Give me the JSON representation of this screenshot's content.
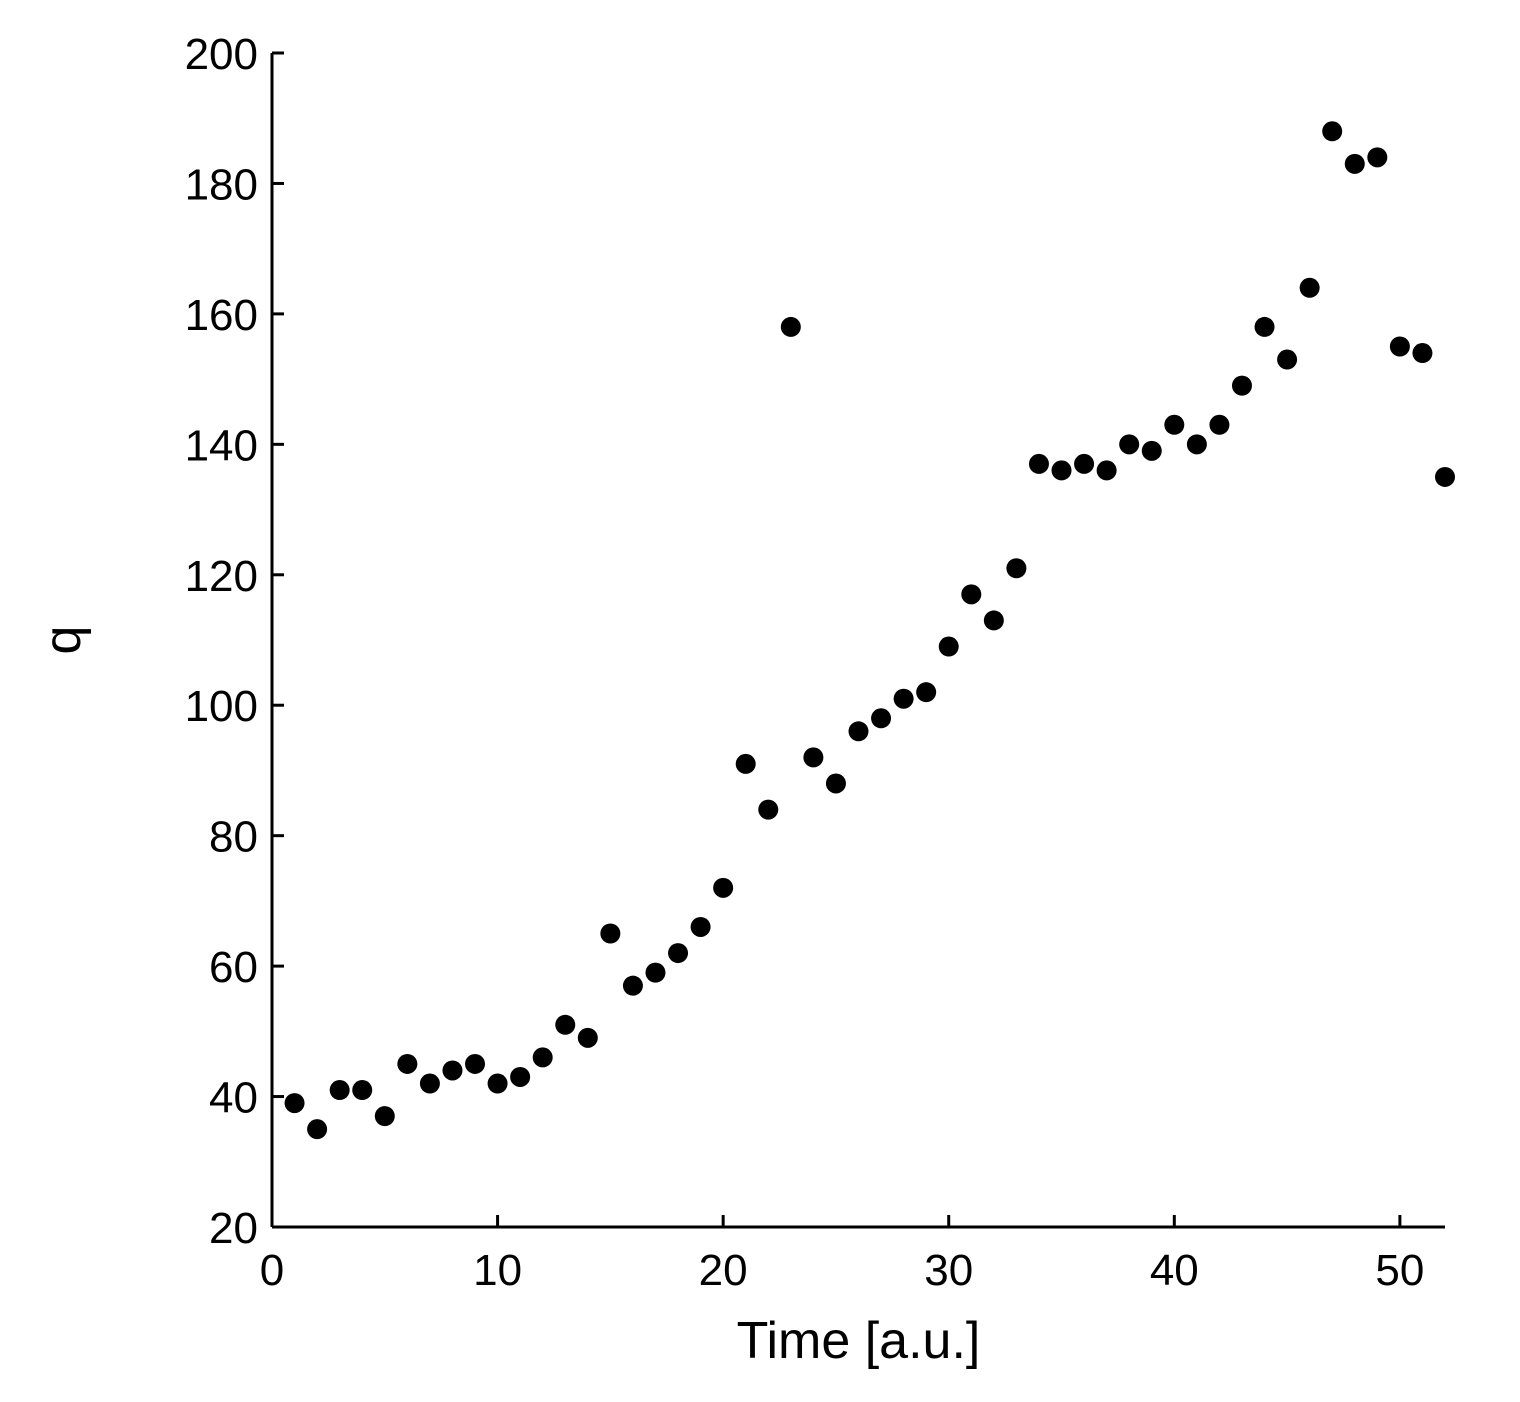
{
  "chart_data": {
    "type": "scatter",
    "xlabel": "Time [a.u.]",
    "ylabel": "q",
    "xlim": [
      0,
      52
    ],
    "ylim": [
      20,
      200
    ],
    "xticks": [
      0,
      10,
      20,
      30,
      40,
      50
    ],
    "yticks": [
      20,
      40,
      60,
      80,
      100,
      120,
      140,
      160,
      180,
      200
    ],
    "grid": false,
    "legend": "none",
    "marker_color": "#000000",
    "x": [
      1,
      2,
      3,
      4,
      5,
      6,
      7,
      8,
      9,
      10,
      11,
      12,
      13,
      14,
      15,
      16,
      17,
      18,
      19,
      20,
      21,
      22,
      23,
      24,
      25,
      26,
      27,
      28,
      29,
      30,
      31,
      32,
      33,
      34,
      35,
      36,
      37,
      38,
      39,
      40,
      41,
      42,
      43,
      44,
      45,
      46,
      47,
      48,
      49,
      50,
      51,
      52
    ],
    "y": [
      39,
      35,
      41,
      41,
      37,
      45,
      42,
      44,
      45,
      42,
      43,
      46,
      51,
      49,
      65,
      57,
      59,
      62,
      66,
      72,
      91,
      84,
      158,
      92,
      88,
      96,
      98,
      101,
      102,
      109,
      117,
      113,
      121,
      137,
      136,
      137,
      136,
      140,
      139,
      143,
      140,
      143,
      149,
      158,
      153,
      164,
      188,
      183,
      184,
      155,
      154,
      135
    ]
  }
}
